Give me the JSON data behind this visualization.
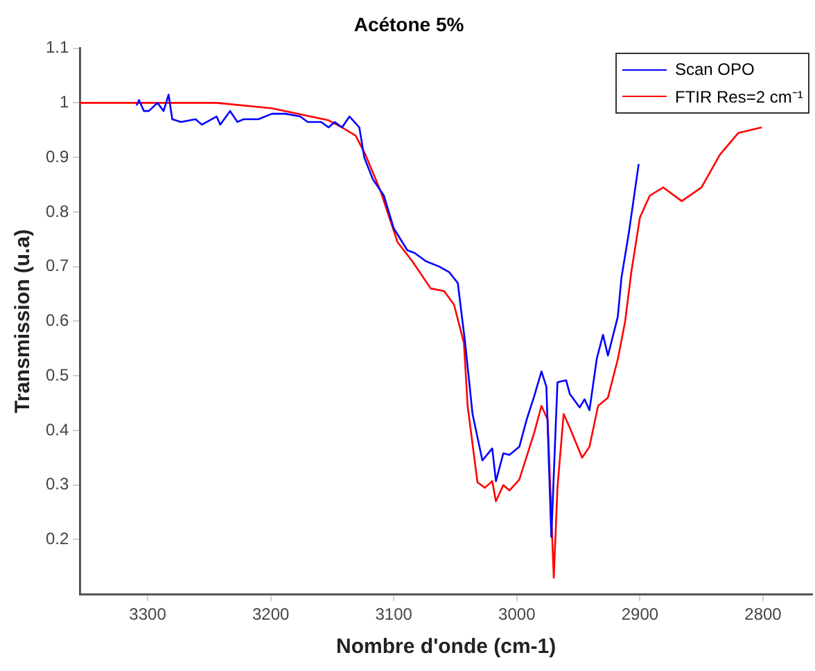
{
  "chart_data": {
    "type": "line",
    "title": "Acétone 5%",
    "xlabel": "Nombre d'onde (cm-1)",
    "ylabel": "Transmission (u.a)",
    "xlim": [
      3355,
      2760
    ],
    "xticks": [
      3300,
      3200,
      3100,
      3000,
      2900,
      2800
    ],
    "ylim": [
      0.1,
      1.1
    ],
    "yticks": [
      0.2,
      0.3,
      0.4,
      0.5,
      0.6,
      0.7,
      0.8,
      0.9,
      1,
      1.1
    ],
    "grid": false,
    "legend": "top right",
    "marker": "none",
    "line_style": "solid",
    "series": [
      {
        "name": "Scan OPO",
        "color": "#0000ff",
        "x": [
          3309,
          3307,
          3303,
          3299,
          3292,
          3287,
          3283,
          3280,
          3273,
          3261,
          3256,
          3244,
          3241,
          3233,
          3227,
          3222,
          3210,
          3199,
          3188,
          3176,
          3170,
          3159,
          3153,
          3148,
          3142,
          3136,
          3128,
          3124,
          3117,
          3108,
          3100,
          3089,
          3083,
          3074,
          3063,
          3055,
          3048,
          3042,
          3036,
          3028,
          3020,
          3017,
          3011,
          3006,
          2998,
          2992,
          2986,
          2980,
          2976,
          2972,
          2967,
          2960,
          2957,
          2949,
          2945,
          2941,
          2935,
          2930,
          2926,
          2918,
          2915,
          2909,
          2901
        ],
        "values": [
          0.995,
          1.005,
          0.985,
          0.985,
          1.0,
          0.985,
          1.015,
          0.97,
          0.965,
          0.97,
          0.96,
          0.975,
          0.96,
          0.985,
          0.965,
          0.97,
          0.97,
          0.98,
          0.98,
          0.975,
          0.965,
          0.965,
          0.955,
          0.965,
          0.955,
          0.975,
          0.955,
          0.9,
          0.86,
          0.83,
          0.77,
          0.73,
          0.725,
          0.71,
          0.7,
          0.69,
          0.67,
          0.56,
          0.43,
          0.345,
          0.367,
          0.307,
          0.358,
          0.355,
          0.37,
          0.42,
          0.462,
          0.508,
          0.48,
          0.205,
          0.488,
          0.492,
          0.467,
          0.442,
          0.457,
          0.437,
          0.532,
          0.575,
          0.537,
          0.608,
          0.68,
          0.762,
          0.888
        ]
      },
      {
        "name": "FTIR Res=2 cm⁻¹",
        "color": "#ff0000",
        "x": [
          3355,
          3244,
          3199,
          3153,
          3142,
          3131,
          3123,
          3111,
          3097,
          3085,
          3070,
          3059,
          3051,
          3043,
          3040,
          3032,
          3026,
          3020,
          3017,
          3011,
          3006,
          2998,
          2986,
          2980,
          2975,
          2970,
          2967,
          2962,
          2957,
          2947,
          2941,
          2934,
          2926,
          2918,
          2912,
          2907,
          2900,
          2892,
          2881,
          2866,
          2850,
          2835,
          2820,
          2801
        ],
        "values": [
          1.0,
          1.0,
          0.99,
          0.968,
          0.955,
          0.94,
          0.905,
          0.84,
          0.745,
          0.71,
          0.66,
          0.655,
          0.63,
          0.56,
          0.445,
          0.305,
          0.295,
          0.307,
          0.27,
          0.3,
          0.29,
          0.31,
          0.395,
          0.445,
          0.42,
          0.13,
          0.295,
          0.43,
          0.405,
          0.35,
          0.37,
          0.445,
          0.46,
          0.53,
          0.6,
          0.69,
          0.79,
          0.83,
          0.845,
          0.82,
          0.845,
          0.905,
          0.945,
          0.955
        ]
      }
    ]
  }
}
